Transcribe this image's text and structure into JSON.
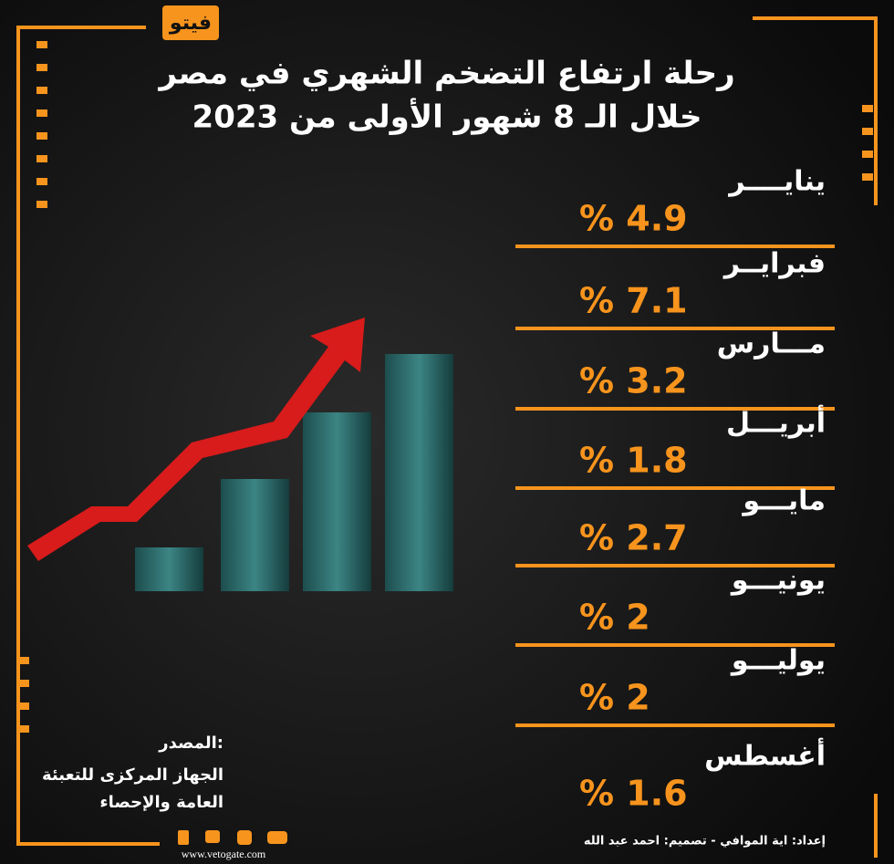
{
  "logo": "فيتو",
  "title": {
    "line1": "رحلة ارتفاع التضخم الشهري في مصر",
    "line2": "خلال الـ 8 شهور الأولى من 2023"
  },
  "items": [
    {
      "month": "ينايــــر",
      "value": "% 4.9"
    },
    {
      "month": "فبرايــر",
      "value": "% 7.1"
    },
    {
      "month": "مـــارس",
      "value": "% 3.2"
    },
    {
      "month": "أبريـــل",
      "value": "% 1.8"
    },
    {
      "month": "مايـــو",
      "value": "% 2.7"
    },
    {
      "month": "يونيـــو",
      "value": "% 2"
    },
    {
      "month": "يوليـــو",
      "value": "% 2"
    },
    {
      "month": "أغسطس",
      "value": "% 1.6"
    }
  ],
  "source": {
    "label": "المصدر:",
    "line1": "الجهاز المركزى للتعبئة",
    "line2": "العامة والإحصاء"
  },
  "credits": "إعداد: اية الموافي - تصميم: احمد عبد الله",
  "website": "www.vetogate.com"
}
